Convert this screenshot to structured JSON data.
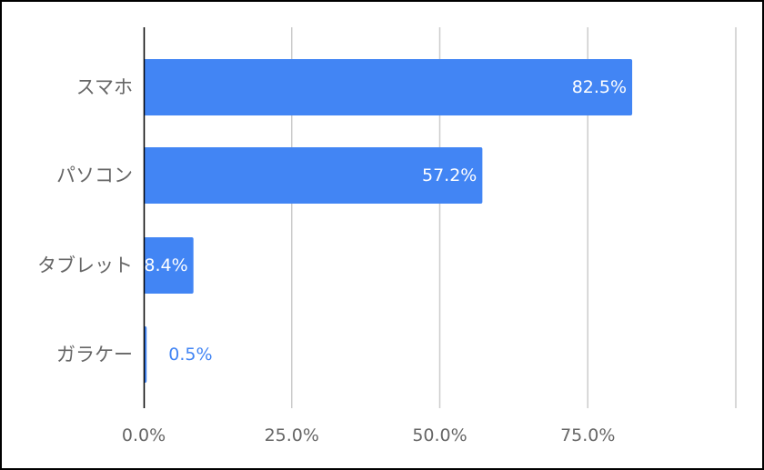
{
  "chart_data": {
    "type": "bar",
    "orientation": "horizontal",
    "categories": [
      "スマホ",
      "パソコン",
      "タブレット",
      "ガラケー"
    ],
    "values": [
      82.5,
      57.2,
      8.4,
      0.5
    ],
    "value_labels": [
      "82.5%",
      "57.2%",
      "8.4%",
      "0.5%"
    ],
    "x_ticks": [
      "0.0%",
      "25.0%",
      "50.0%",
      "75.0%"
    ],
    "xlim": [
      0,
      100
    ],
    "grid": true,
    "legend": "none",
    "colors": {
      "bar": "#4285f4",
      "label_inside": "#ffffff",
      "label_outside": "#4285f4",
      "grid": "#cccccc",
      "axis": "#000000",
      "text": "#666666"
    }
  }
}
